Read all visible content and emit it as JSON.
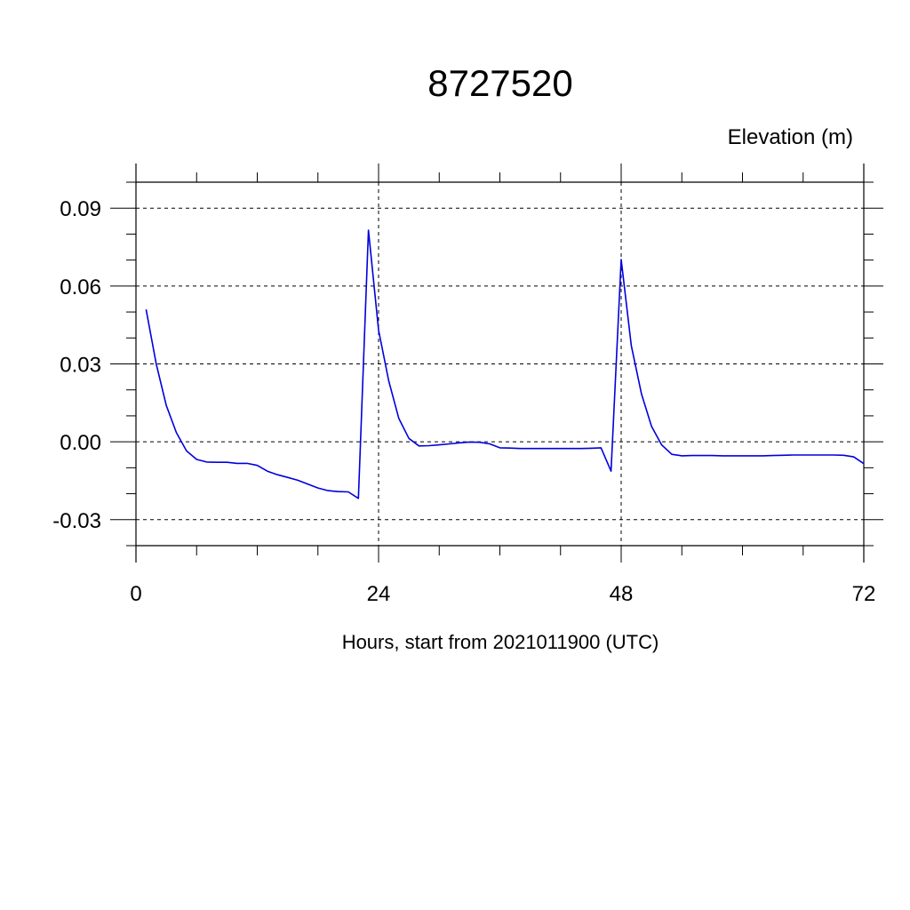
{
  "chart_data": {
    "type": "line",
    "title": "8727520",
    "ylabel": "Elevation (m)",
    "xlabel": "Hours, start from 2021011900 (UTC)",
    "xlim": [
      0,
      72
    ],
    "ylim": [
      -0.04,
      0.1
    ],
    "x_ticks": [
      0,
      24,
      48,
      72
    ],
    "x_tick_labels": [
      "0",
      "24",
      "48",
      "72"
    ],
    "y_ticks": [
      -0.03,
      0.0,
      0.03,
      0.06,
      0.09
    ],
    "y_tick_labels": [
      "-0.03",
      "0.00",
      "0.03",
      "0.06",
      "0.09"
    ],
    "grid": "dashed at major ticks",
    "series": [
      {
        "color": "#0000dd",
        "x": [
          1,
          2,
          3,
          4,
          5,
          6,
          7,
          8,
          9,
          10,
          11,
          12,
          13,
          14,
          15,
          16,
          17,
          18,
          19,
          20,
          21,
          22,
          23,
          24,
          25,
          26,
          27,
          28,
          29,
          30,
          31,
          32,
          33,
          34,
          35,
          36,
          37,
          38,
          39,
          40,
          41,
          42,
          43,
          44,
          45,
          46,
          47,
          48,
          49,
          50,
          51,
          52,
          53,
          54,
          55,
          56,
          57,
          58,
          59,
          60,
          61,
          62,
          63,
          64,
          65,
          66,
          67,
          68,
          69,
          70,
          71,
          72
        ],
        "y": [
          0.051,
          0.03,
          0.014,
          0.0035,
          -0.0035,
          -0.0068,
          -0.0078,
          -0.0079,
          -0.0079,
          -0.0083,
          -0.0083,
          -0.0091,
          -0.0113,
          -0.0127,
          -0.0137,
          -0.0148,
          -0.0163,
          -0.0178,
          -0.0188,
          -0.0192,
          -0.0193,
          -0.0218,
          0.0815,
          0.043,
          0.0235,
          0.009,
          0.0013,
          -0.0016,
          -0.0015,
          -0.0012,
          -0.0008,
          -0.0004,
          -0.0001,
          -0.0002,
          -0.0008,
          -0.0023,
          -0.0024,
          -0.0026,
          -0.0026,
          -0.0026,
          -0.0026,
          -0.0026,
          -0.0026,
          -0.0026,
          -0.0025,
          -0.0023,
          -0.0113,
          0.0702,
          0.037,
          0.0185,
          0.006,
          -0.0012,
          -0.0048,
          -0.0054,
          -0.0053,
          -0.0053,
          -0.0053,
          -0.0054,
          -0.0054,
          -0.0054,
          -0.0054,
          -0.0054,
          -0.0053,
          -0.0052,
          -0.0051,
          -0.0051,
          -0.0051,
          -0.0051,
          -0.0051,
          -0.0052,
          -0.0058,
          -0.0084
        ]
      }
    ]
  }
}
